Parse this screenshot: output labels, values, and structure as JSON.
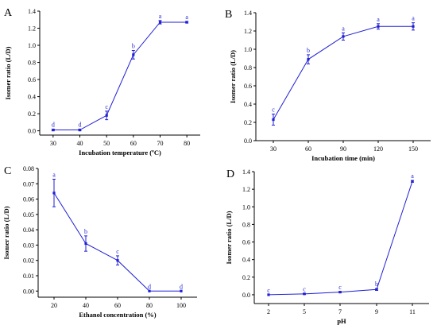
{
  "chart_data": [
    {
      "panel": "A",
      "type": "line",
      "xlabel": "Incubation temperature (ºC)",
      "ylabel": "Isomer ratio (L/D)",
      "x": [
        30,
        40,
        50,
        60,
        70,
        80
      ],
      "x_tick_labels": [
        "30",
        "40",
        "50",
        "60",
        "70",
        "80"
      ],
      "xlim": [
        25,
        85
      ],
      "ylim": [
        -0.05,
        1.4
      ],
      "y_ticks": [
        0.0,
        0.2,
        0.4,
        0.6,
        0.8,
        1.0,
        1.2,
        1.4
      ],
      "y_tick_labels": [
        "0.0",
        "0.2",
        "0.4",
        "0.6",
        "0.8",
        "1.0",
        "1.2",
        "1.4"
      ],
      "series": [
        {
          "values": [
            0.01,
            0.01,
            0.18,
            0.89,
            1.27,
            1.27
          ],
          "errors": [
            0.01,
            0.01,
            0.05,
            0.05,
            0.02,
            0.01
          ],
          "labels": [
            "d",
            "d",
            "c",
            "b",
            "a",
            "a"
          ],
          "color": "#1f1fd6"
        }
      ],
      "grid": false
    },
    {
      "panel": "B",
      "type": "line",
      "xlabel": "Incubation time (min)",
      "ylabel": "Isomer ratio (L/D)",
      "x": [
        30,
        60,
        90,
        120,
        150
      ],
      "x_tick_labels": [
        "30",
        "60",
        "90",
        "120",
        "150"
      ],
      "xlim": [
        15,
        165
      ],
      "ylim": [
        0.0,
        1.4
      ],
      "y_ticks": [
        0.0,
        0.2,
        0.4,
        0.6,
        0.8,
        1.0,
        1.2,
        1.4
      ],
      "y_tick_labels": [
        "0.0",
        "0.2",
        "0.4",
        "0.6",
        "0.8",
        "1.0",
        "1.2",
        "1.4"
      ],
      "series": [
        {
          "values": [
            0.23,
            0.89,
            1.14,
            1.25,
            1.25
          ],
          "errors": [
            0.06,
            0.05,
            0.04,
            0.03,
            0.04
          ],
          "labels": [
            "c",
            "b",
            "a",
            "a",
            "a"
          ],
          "color": "#1f1fd6"
        }
      ],
      "grid": false
    },
    {
      "panel": "C",
      "type": "line",
      "xlabel": "Ethanol concentration (%)",
      "ylabel": "Isomer ratio (L/D)",
      "x": [
        20,
        40,
        60,
        80,
        100
      ],
      "x_tick_labels": [
        "20",
        "40",
        "60",
        "80",
        "100"
      ],
      "xlim": [
        10,
        110
      ],
      "ylim": [
        -0.004,
        0.08
      ],
      "y_ticks": [
        0.0,
        0.01,
        0.02,
        0.03,
        0.04,
        0.05,
        0.06,
        0.07,
        0.08
      ],
      "y_tick_labels": [
        "0.00",
        "0.01",
        "0.02",
        "0.03",
        "0.04",
        "0.05",
        "0.06",
        "0.07",
        "0.08"
      ],
      "series": [
        {
          "values": [
            0.064,
            0.031,
            0.02,
            0.0,
            0.0
          ],
          "errors": [
            0.009,
            0.005,
            0.003,
            0.0,
            0.0
          ],
          "labels": [
            "a",
            "b",
            "c",
            "d",
            "d"
          ],
          "color": "#1f1fd6"
        }
      ],
      "grid": false
    },
    {
      "panel": "D",
      "type": "line",
      "xlabel": "pH",
      "ylabel": "Isomer ratio (L/D)",
      "x": [
        2,
        5,
        7,
        9,
        11
      ],
      "x_tick_labels": [
        "2",
        "5",
        "7",
        "9",
        "11"
      ],
      "x_categorical": true,
      "ylim": [
        -0.1,
        1.4
      ],
      "y_ticks": [
        0.0,
        0.2,
        0.4,
        0.6,
        0.8,
        1.0,
        1.2,
        1.4
      ],
      "y_tick_labels": [
        "0.0",
        "0.2",
        "0.4",
        "0.6",
        "0.8",
        "1.0",
        "1.2",
        "1.4"
      ],
      "series": [
        {
          "values": [
            0.0,
            0.01,
            0.03,
            0.06,
            1.29
          ],
          "errors": [
            0.0,
            0.005,
            0.005,
            0.01,
            0.01
          ],
          "labels": [
            "c",
            "c",
            "c",
            "b",
            "a"
          ],
          "color": "#1f1fd6"
        }
      ],
      "grid": false
    }
  ]
}
